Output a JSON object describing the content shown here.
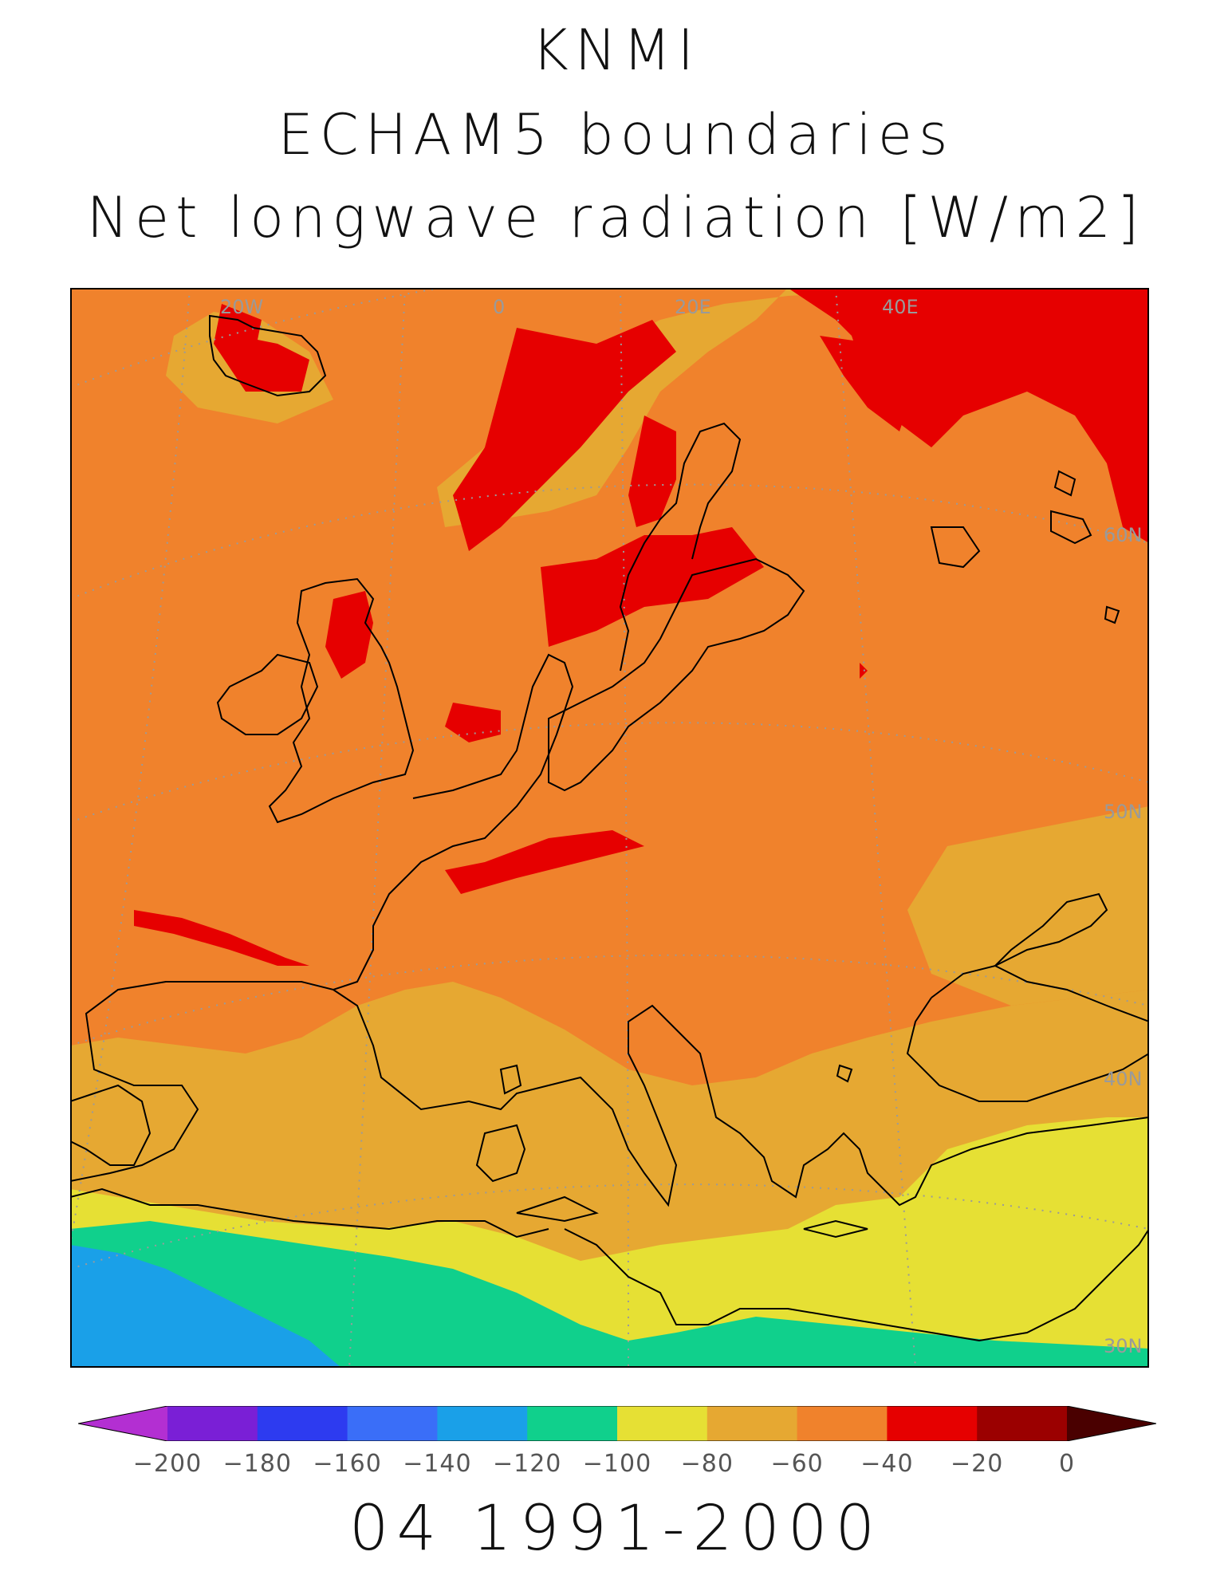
{
  "title": {
    "line1": "KNMI",
    "line2": "ECHAM5 boundaries",
    "line3": "Net longwave radiation [W/m2]"
  },
  "map": {
    "grid_labels": {
      "lon_20W": "20W",
      "lon_0": "0",
      "lon_20E": "20E",
      "lon_40E": "40E",
      "lat_60N": "60N",
      "lat_50N": "50N",
      "lat_40N": "40N",
      "lat_30N": "30N"
    }
  },
  "colorbar": {
    "labels": [
      "-200",
      "-180",
      "-160",
      "-140",
      "-120",
      "-100",
      "-80",
      "-60",
      "-40",
      "-20",
      "0"
    ],
    "colors": [
      "#b32fd2",
      "#7a1fd6",
      "#2d3bf0",
      "#3a6ef8",
      "#1aa0e8",
      "#10d08c",
      "#e6e034",
      "#e6a832",
      "#f0822c",
      "#e60000",
      "#9b0000",
      "#4a0000"
    ]
  },
  "footer": {
    "text": "04 1991-2000"
  }
}
